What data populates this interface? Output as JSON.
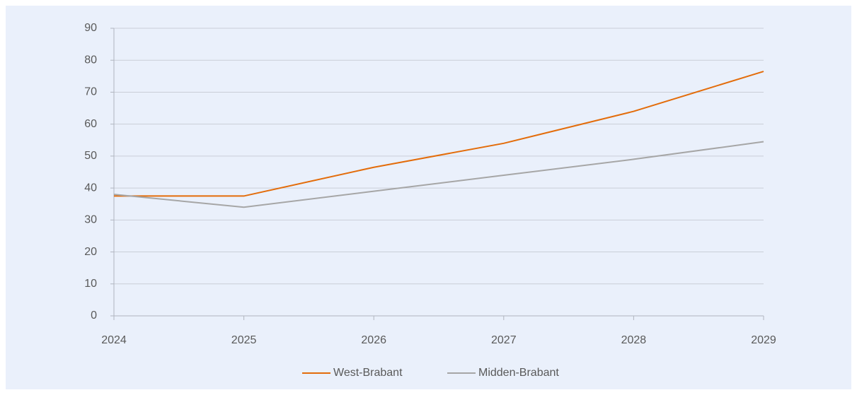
{
  "chart_data": {
    "type": "line",
    "x": [
      2024,
      2025,
      2026,
      2027,
      2028,
      2029
    ],
    "xlim": [
      2024,
      2029
    ],
    "xticks": [
      2024,
      2025,
      2026,
      2027,
      2028,
      2029
    ],
    "ylim": [
      0,
      90
    ],
    "yticks": [
      0,
      10,
      20,
      30,
      40,
      50,
      60,
      70,
      80,
      90
    ],
    "grid": true,
    "legend": "bottom",
    "series": [
      {
        "name": "West-Brabant",
        "color": "#e36c0a",
        "values": [
          37.5,
          37.5,
          46.5,
          54,
          64,
          76.5
        ]
      },
      {
        "name": "Midden-Brabant",
        "color": "#a6a6a6",
        "values": [
          38,
          34,
          39,
          44,
          49,
          54.5
        ]
      }
    ]
  }
}
